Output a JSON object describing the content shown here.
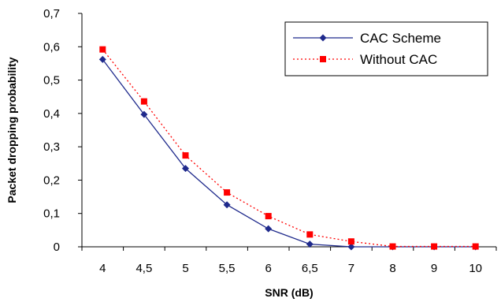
{
  "chart_data": {
    "type": "line",
    "xlabel": "SNR (dB)",
    "ylabel": "Packet dropping probability",
    "categories": [
      "4",
      "4,5",
      "5",
      "5,5",
      "6",
      "6,5",
      "7",
      "8",
      "9",
      "10"
    ],
    "ylim": [
      0,
      0.7
    ],
    "yticks": [
      "0",
      "0,1",
      "0,2",
      "0,3",
      "0,4",
      "0,5",
      "0,6",
      "0,7"
    ],
    "grid": false,
    "legend_position": "top-right",
    "series": [
      {
        "name": "CAC Scheme",
        "color": "#1f2a8c",
        "line_style": "solid",
        "marker": "diamond",
        "values": [
          0.562,
          0.397,
          0.235,
          0.126,
          0.054,
          0.008,
          0.0,
          0.0,
          0.0,
          0.0
        ]
      },
      {
        "name": "Without CAC",
        "color": "#ff0000",
        "line_style": "dotted",
        "marker": "square",
        "values": [
          0.592,
          0.436,
          0.274,
          0.163,
          0.092,
          0.037,
          0.016,
          0.001,
          0.001,
          0.001
        ]
      }
    ]
  }
}
